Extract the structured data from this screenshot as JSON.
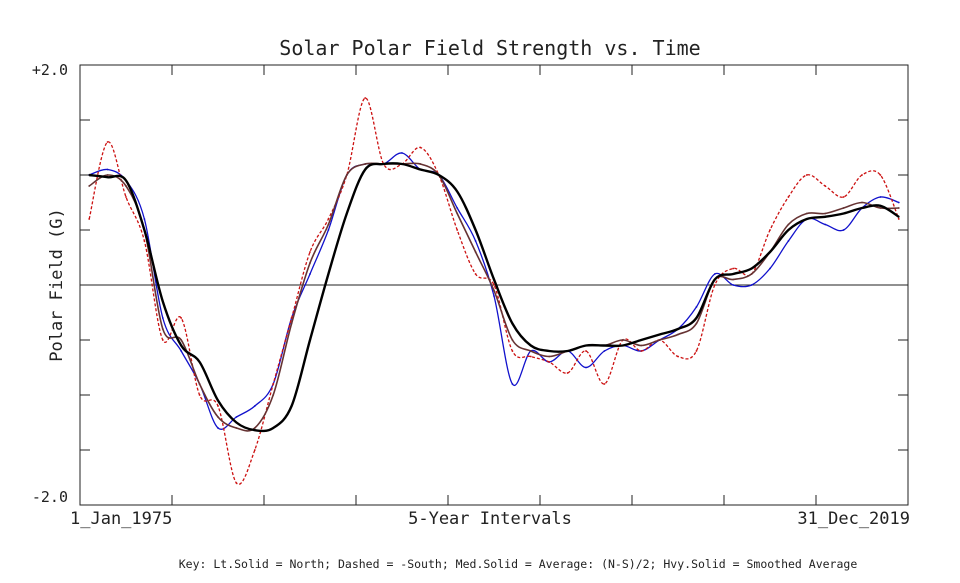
{
  "chart_data": {
    "type": "line",
    "title": "Solar Polar Field Strength vs. Time",
    "ylabel": "Polar Field (G)",
    "xlabel": "5-Year Intervals",
    "x_start_label": "1_Jan_1975",
    "x_end_label": "31_Dec_2019",
    "y_top_label": "+2.0",
    "y_bottom_label": "-2.0",
    "key": "Key: Lt.Solid = North; Dashed = -South; Med.Solid = Average: (N-S)/2; Hvy.Solid = Smoothed Average",
    "xlim": [
      1975.0,
      2020.0
    ],
    "ylim": [
      -2.0,
      2.0
    ],
    "x_tick_years": [
      1980,
      1985,
      1990,
      1995,
      2000,
      2005,
      2010,
      2015
    ],
    "y_ticks": [
      -1.5,
      -1.0,
      -0.5,
      0.0,
      0.5,
      1.0,
      1.5
    ],
    "zero_line": true,
    "grid": false,
    "colors": {
      "north": "#1111cc",
      "south": "#cc1111",
      "average": "#663333",
      "smoothed": "#000000",
      "axis": "#222222"
    },
    "series": [
      {
        "name": "North",
        "style": "light-solid",
        "x": [
          1975.5,
          1976.5,
          1977.5,
          1978.5,
          1979.5,
          1980.5,
          1981.5,
          1982.5,
          1983.5,
          1984.5,
          1985.5,
          1986.5,
          1987.5,
          1988.5,
          1989.5,
          1990.5,
          1991.5,
          1992.5,
          1993.5,
          1994.5,
          1995.5,
          1996.5,
          1997.5,
          1998.5,
          1999.5,
          2000.5,
          2001.5,
          2002.5,
          2003.5,
          2004.5,
          2005.5,
          2006.5,
          2007.5,
          2008.5,
          2009.5,
          2010.5,
          2011.5,
          2012.5,
          2013.5,
          2014.5,
          2015.5,
          2016.5,
          2017.5,
          2018.5,
          2019.5
        ],
        "values": [
          1.0,
          1.05,
          0.95,
          0.6,
          -0.3,
          -0.6,
          -0.9,
          -1.3,
          -1.2,
          -1.1,
          -0.9,
          -0.3,
          0.1,
          0.5,
          1.0,
          1.1,
          1.1,
          1.2,
          1.05,
          1.0,
          0.7,
          0.4,
          -0.1,
          -0.9,
          -0.6,
          -0.7,
          -0.6,
          -0.75,
          -0.6,
          -0.55,
          -0.6,
          -0.5,
          -0.4,
          -0.2,
          0.1,
          0.0,
          0.0,
          0.15,
          0.4,
          0.6,
          0.55,
          0.5,
          0.7,
          0.8,
          0.75
        ]
      },
      {
        "name": "-South",
        "style": "dashed",
        "x": [
          1975.5,
          1976.5,
          1977.5,
          1978.5,
          1979.5,
          1980.5,
          1981.5,
          1982.5,
          1983.5,
          1984.5,
          1985.5,
          1986.5,
          1987.5,
          1988.5,
          1989.5,
          1990.5,
          1991.5,
          1992.5,
          1993.5,
          1994.5,
          1995.5,
          1996.5,
          1997.5,
          1998.5,
          1999.5,
          2000.5,
          2001.5,
          2002.5,
          2003.5,
          2004.5,
          2005.5,
          2006.5,
          2007.5,
          2008.5,
          2009.5,
          2010.5,
          2011.5,
          2012.5,
          2013.5,
          2014.5,
          2015.5,
          2016.5,
          2017.5,
          2018.5,
          2019.5
        ],
        "values": [
          0.6,
          1.3,
          0.8,
          0.4,
          -0.5,
          -0.3,
          -1.0,
          -1.1,
          -1.8,
          -1.5,
          -0.9,
          -0.3,
          0.3,
          0.6,
          1.0,
          1.7,
          1.1,
          1.1,
          1.25,
          1.0,
          0.5,
          0.1,
          0.0,
          -0.6,
          -0.65,
          -0.7,
          -0.8,
          -0.6,
          -0.9,
          -0.5,
          -0.6,
          -0.5,
          -0.65,
          -0.6,
          0.0,
          0.15,
          0.1,
          0.5,
          0.8,
          1.0,
          0.9,
          0.8,
          1.0,
          1.0,
          0.6
        ]
      },
      {
        "name": "Average: (N-S)/2",
        "style": "medium-solid",
        "x": [
          1975.5,
          1976.5,
          1977.5,
          1978.5,
          1979.5,
          1980.5,
          1981.5,
          1982.5,
          1983.5,
          1984.5,
          1985.5,
          1986.5,
          1987.5,
          1988.5,
          1989.5,
          1990.5,
          1991.5,
          1992.5,
          1993.5,
          1994.5,
          1995.5,
          1996.5,
          1997.5,
          1998.5,
          1999.5,
          2000.5,
          2001.5,
          2002.5,
          2003.5,
          2004.5,
          2005.5,
          2006.5,
          2007.5,
          2008.5,
          2009.5,
          2010.5,
          2011.5,
          2012.5,
          2013.5,
          2014.5,
          2015.5,
          2016.5,
          2017.5,
          2018.5,
          2019.5
        ],
        "values": [
          0.9,
          1.0,
          0.9,
          0.5,
          -0.4,
          -0.5,
          -0.9,
          -1.2,
          -1.3,
          -1.3,
          -1.0,
          -0.35,
          0.2,
          0.55,
          1.0,
          1.1,
          1.1,
          1.1,
          1.1,
          1.0,
          0.65,
          0.3,
          -0.05,
          -0.5,
          -0.6,
          -0.65,
          -0.6,
          -0.55,
          -0.55,
          -0.5,
          -0.55,
          -0.5,
          -0.45,
          -0.35,
          0.05,
          0.05,
          0.1,
          0.3,
          0.55,
          0.65,
          0.65,
          0.7,
          0.75,
          0.7,
          0.7
        ]
      },
      {
        "name": "Smoothed Average",
        "style": "heavy-solid",
        "x": [
          1975.5,
          1976.5,
          1977.5,
          1978.5,
          1979.5,
          1980.5,
          1981.5,
          1982.5,
          1983.5,
          1984.5,
          1985.5,
          1986.5,
          1987.5,
          1988.5,
          1989.5,
          1990.5,
          1991.5,
          1992.5,
          1993.5,
          1994.5,
          1995.5,
          1996.5,
          1997.5,
          1998.5,
          1999.5,
          2000.5,
          2001.5,
          2002.5,
          2003.5,
          2004.5,
          2005.5,
          2006.5,
          2007.5,
          2008.5,
          2009.5,
          2010.5,
          2011.5,
          2012.5,
          2013.5,
          2014.5,
          2015.5,
          2016.5,
          2017.5,
          2018.5,
          2019.5
        ],
        "values": [
          1.0,
          0.98,
          0.95,
          0.5,
          -0.15,
          -0.55,
          -0.7,
          -1.05,
          -1.25,
          -1.32,
          -1.3,
          -1.1,
          -0.5,
          0.1,
          0.65,
          1.05,
          1.1,
          1.1,
          1.05,
          1.0,
          0.85,
          0.5,
          0.05,
          -0.35,
          -0.55,
          -0.6,
          -0.6,
          -0.55,
          -0.55,
          -0.55,
          -0.5,
          -0.45,
          -0.4,
          -0.3,
          0.05,
          0.1,
          0.15,
          0.3,
          0.5,
          0.6,
          0.62,
          0.65,
          0.7,
          0.72,
          0.62
        ]
      }
    ]
  }
}
